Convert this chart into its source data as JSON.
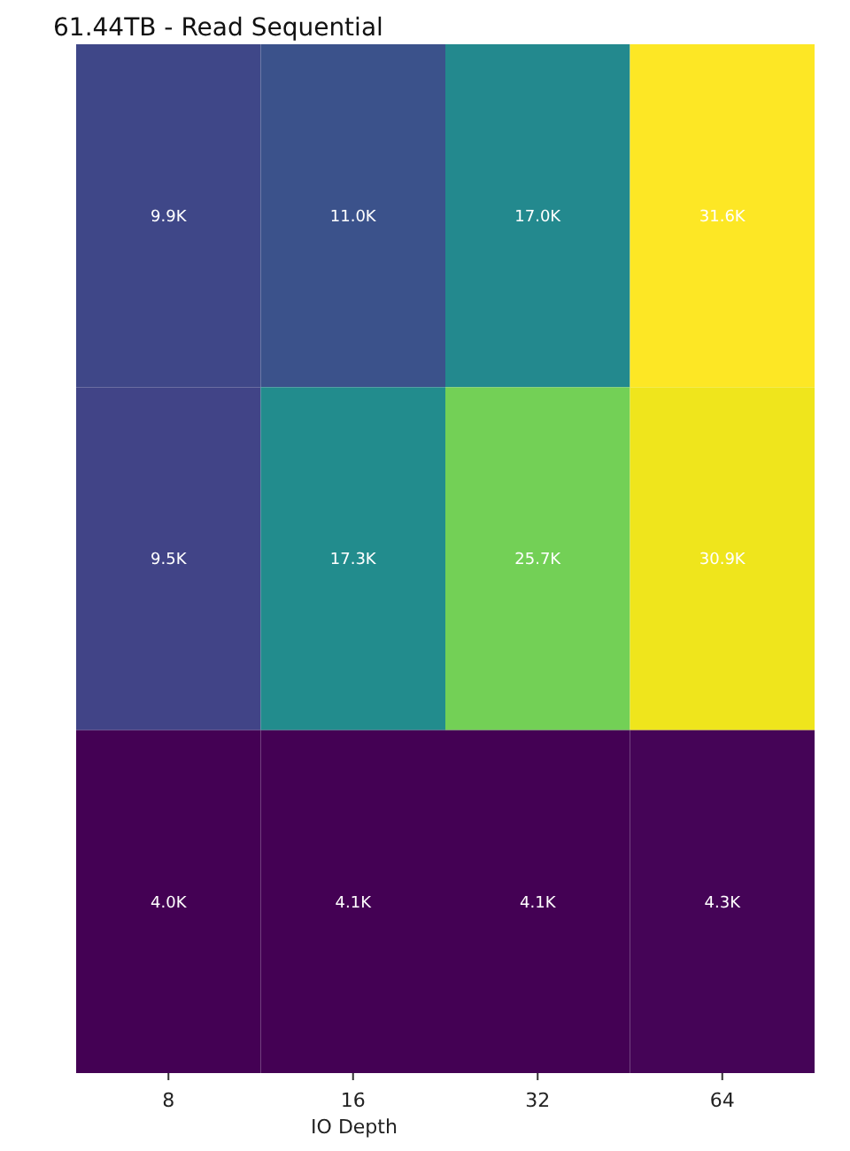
{
  "chart_data": {
    "type": "heatmap",
    "title": "61.44TB - Read Sequential",
    "xlabel": "IO Depth",
    "categories": [
      "8",
      "16",
      "32",
      "64"
    ],
    "y_categories": [
      null,
      null,
      null
    ],
    "cells": [
      [
        9900,
        11000,
        17000,
        31600
      ],
      [
        9500,
        17300,
        25700,
        30900
      ],
      [
        4000,
        4100,
        4100,
        4300
      ]
    ],
    "cell_labels": [
      [
        "9.9K",
        "11.0K",
        "17.0K",
        "31.6K"
      ],
      [
        "9.5K",
        "17.3K",
        "25.7K",
        "30.9K"
      ],
      [
        "4.0K",
        "4.1K",
        "4.1K",
        "4.3K"
      ]
    ]
  }
}
